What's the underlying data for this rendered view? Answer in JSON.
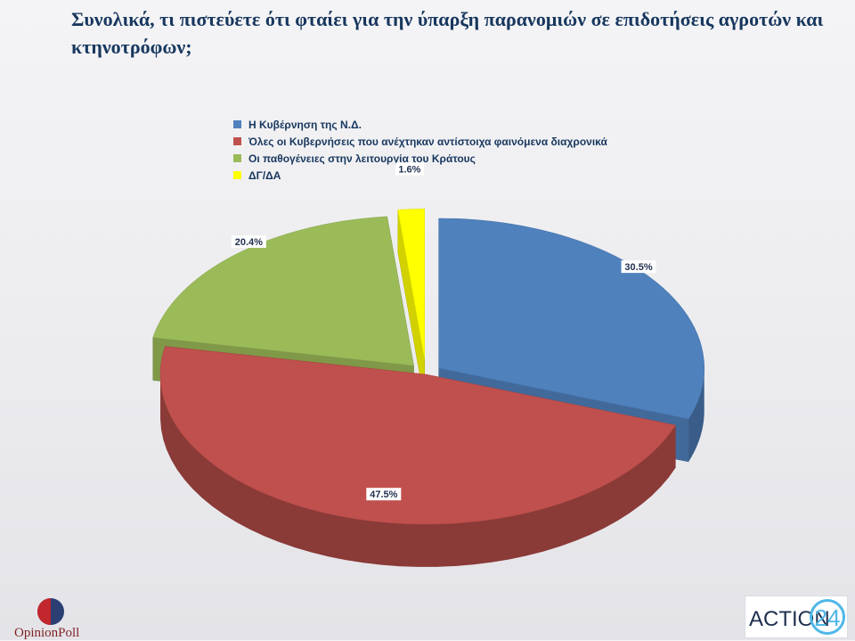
{
  "title": "Συνολικά, τι πιστεύετε ότι φταίει για την ύπαρξη παρανομιών σε επιδοτήσεις αγροτών και κτηνοτρόφων;",
  "chart_data": {
    "type": "pie",
    "title": "Συνολικά, τι πιστεύετε ότι φταίει για την ύπαρξη παρανομιών σε επιδοτήσεις αγροτών και κτηνοτρόφων;",
    "style": "3d-exploded",
    "legend_position": "top",
    "slices": [
      {
        "label": "Η Κυβέρνηση της Ν.Δ.",
        "value": 30.5,
        "value_label": "30.5%",
        "color": "#4f81bd"
      },
      {
        "label": "Όλες οι Κυβερνήσεις που ανέχτηκαν αντίστοιχα φαινόμενα διαχρονικά",
        "value": 47.5,
        "value_label": "47.5%",
        "color": "#c0504d"
      },
      {
        "label": "Οι παθογένειες στην λειτουργία του Κράτους",
        "value": 20.4,
        "value_label": "20.4%",
        "color": "#9bbb59"
      },
      {
        "label": "ΔΓ/ΔΑ",
        "value": 1.6,
        "value_label": "1.6%",
        "color": "#ffff00"
      }
    ]
  },
  "logos": {
    "left": "OpinionPoll",
    "right_text": "ACTION",
    "right_number": "24"
  }
}
